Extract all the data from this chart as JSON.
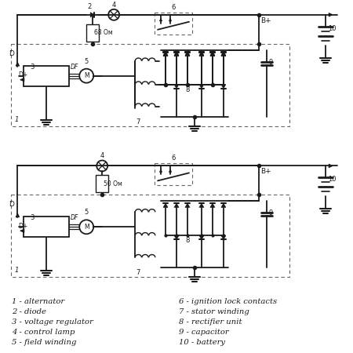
{
  "background_color": "#ffffff",
  "line_color": "#1a1a1a",
  "resistor1_label": "68 Ом",
  "resistor2_label": "50 Ом",
  "legend_left": [
    "1 - alternator",
    "2 - diode",
    "3 - voltage regulator",
    "4 - control lamp",
    "5 - field winding"
  ],
  "legend_right": [
    "6 - ignition lock contacts",
    "7 - stator winding",
    "8 - rectifier unit",
    "9 - capacitor",
    "10 - battery"
  ]
}
